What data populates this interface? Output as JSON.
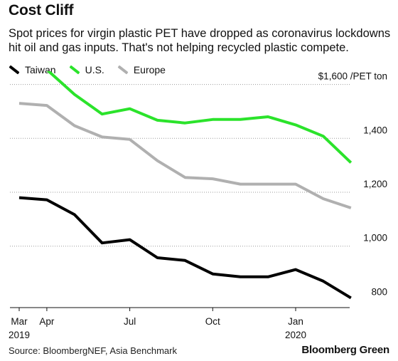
{
  "header": {
    "title": "Cost Cliff",
    "subtitle": "Spot prices for virgin plastic PET have dropped as coronavirus lockdowns hit oil and gas inputs. That's not helping recycled plastic compete."
  },
  "legend": [
    {
      "label": "Taiwan",
      "color": "#000000"
    },
    {
      "label": "U.S.",
      "color": "#2be32b"
    },
    {
      "label": "Europe",
      "color": "#b0b0b0"
    }
  ],
  "footer": {
    "source": "Source: BloombergNEF, Asia Benchmark",
    "brand": "Bloomberg Green"
  },
  "chart_data": {
    "type": "line",
    "title": "Cost Cliff",
    "x": [
      "2019-03",
      "2019-04",
      "2019-05",
      "2019-06",
      "2019-07",
      "2019-08",
      "2019-09",
      "2019-10",
      "2019-11",
      "2019-12",
      "2020-01",
      "2020-02",
      "2020-03"
    ],
    "xticks": [
      {
        "x": "2019-03",
        "label": "Mar",
        "sublabel": "2019"
      },
      {
        "x": "2019-04",
        "label": "Apr",
        "sublabel": ""
      },
      {
        "x": "2019-07",
        "label": "Jul",
        "sublabel": ""
      },
      {
        "x": "2019-10",
        "label": "Oct",
        "sublabel": ""
      },
      {
        "x": "2020-01",
        "label": "Jan",
        "sublabel": "2020"
      }
    ],
    "yticks": [
      {
        "value": 1600,
        "label": "$1,600 /PET ton"
      },
      {
        "value": 1400,
        "label": "1,400"
      },
      {
        "value": 1200,
        "label": "1,200"
      },
      {
        "value": 1000,
        "label": "1,000"
      },
      {
        "value": 800,
        "label": "800"
      }
    ],
    "ylim": [
      775,
      1610
    ],
    "ylabel": "",
    "xlabel": "",
    "grid": "horizontal dotted",
    "legend_position": "top-left",
    "series": [
      {
        "name": "Europe",
        "color": "#b0b0b0",
        "values": [
          1530,
          1522,
          1447,
          1405,
          1396,
          1317,
          1255,
          1250,
          1230,
          1230,
          1230,
          1176,
          1142
        ]
      },
      {
        "name": "U.S.",
        "color": "#2be32b",
        "values": [
          1668,
          1655,
          1563,
          1490,
          1510,
          1467,
          1457,
          1470,
          1470,
          1480,
          1450,
          1408,
          1310
        ]
      },
      {
        "name": "Taiwan",
        "color": "#000000",
        "values": [
          1180,
          1172,
          1117,
          1012,
          1024,
          957,
          947,
          897,
          886,
          886,
          913,
          870,
          808
        ]
      }
    ]
  }
}
